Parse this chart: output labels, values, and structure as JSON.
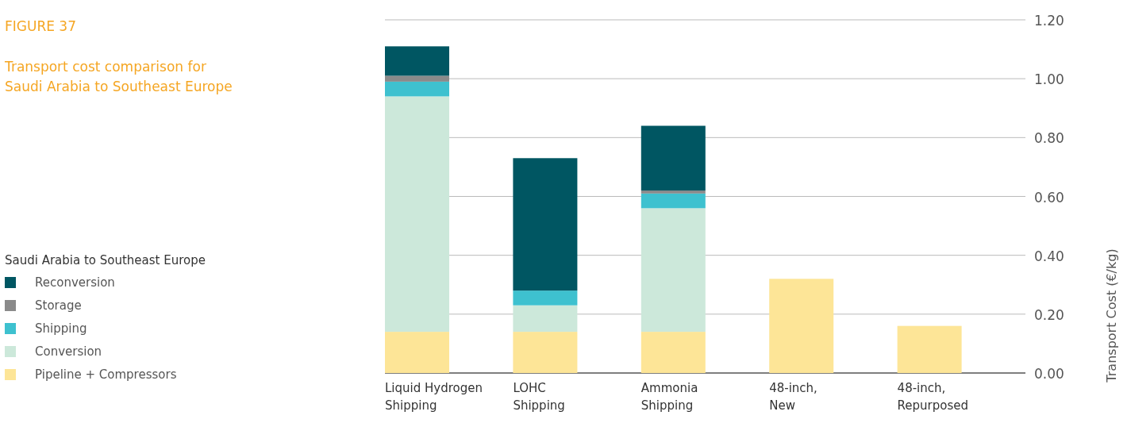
{
  "chart_data": {
    "type": "bar",
    "title": "FIGURE 37",
    "subtitle": "Transport cost comparison for Saudi Arabia to Southeast Europe",
    "ylabel": "Transport Cost (€/kg)",
    "legend_title": "Saudi Arabia to Southeast Europe",
    "stacked": true,
    "legend": "left",
    "grid": "y",
    "categories": [
      "Liquid Hydrogen Shipping",
      "LOHC Shipping",
      "Ammonia Shipping",
      "48-inch, New",
      "48-inch, Repurposed"
    ],
    "series": [
      {
        "name": "Pipeline + Compressors",
        "color": "#fde597",
        "values": [
          0.14,
          0.14,
          0.14,
          0.32,
          0.16
        ]
      },
      {
        "name": "Conversion",
        "color": "#cce8da",
        "values": [
          0.8,
          0.09,
          0.42,
          null,
          null
        ]
      },
      {
        "name": "Shipping",
        "color": "#3ec1cf",
        "values": [
          0.05,
          0.05,
          0.05,
          null,
          null
        ]
      },
      {
        "name": "Storage",
        "color": "#8a8a8a",
        "values": [
          0.02,
          null,
          0.01,
          null,
          null
        ]
      },
      {
        "name": "Reconversion",
        "color": "#005662",
        "values": [
          0.1,
          0.45,
          0.22,
          null,
          null
        ]
      }
    ],
    "ylim": [
      0,
      1.2
    ],
    "yticks": [
      {
        "value": 0,
        "label": "0.00"
      },
      {
        "value": 0.2,
        "label": "0.20"
      },
      {
        "value": 0.4,
        "label": "0.40"
      },
      {
        "value": 0.6,
        "label": "0.60"
      },
      {
        "value": 0.8,
        "label": "0.80"
      },
      {
        "value": 1,
        "label": "1.00"
      },
      {
        "value": 1.2,
        "label": "1.20"
      }
    ]
  }
}
